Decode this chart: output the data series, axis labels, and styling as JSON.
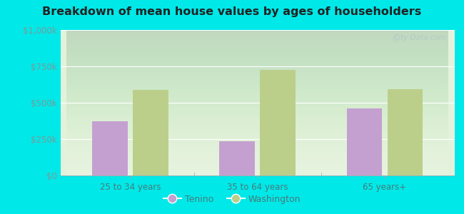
{
  "title": "Breakdown of mean house values by ages of householders",
  "categories": [
    "25 to 34 years",
    "35 to 64 years",
    "65 years+"
  ],
  "tenino_values": [
    375000,
    237000,
    462000
  ],
  "washington_values": [
    590000,
    725000,
    595000
  ],
  "ylim": [
    0,
    1000000
  ],
  "yticks": [
    0,
    250000,
    500000,
    750000,
    1000000
  ],
  "ytick_labels": [
    "$0",
    "$250k",
    "$500k",
    "$750k",
    "$1,000k"
  ],
  "tenino_color": "#c4a0d0",
  "washington_color": "#bccf8a",
  "background_color": "#00e8e8",
  "plot_bg": "#dff0d8",
  "legend_tenino": "Tenino",
  "legend_washington": "Washington",
  "bar_width": 0.28,
  "watermark": "City-Data.com",
  "grid_color": "#ffffff",
  "tick_color": "#7a9a9a",
  "label_color": "#4a7a7a",
  "title_color": "#222222"
}
